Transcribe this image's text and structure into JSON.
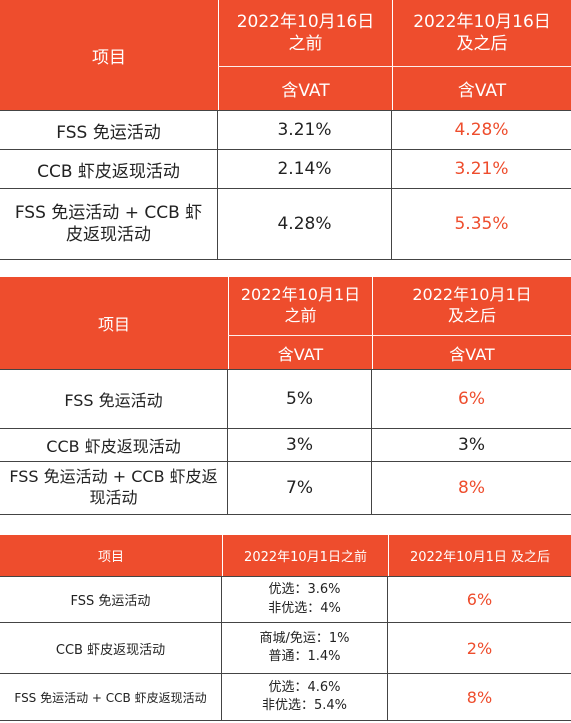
{
  "tables": [
    {
      "header": {
        "item": "项目",
        "col1_line1": "2022年10月16日",
        "col1_line2": "之前",
        "col2_line1": "2022年10月16日",
        "col2_line2": "及之后",
        "sub1": "含VAT",
        "sub2": "含VAT"
      },
      "rows": [
        {
          "item": "FSS 免运活动",
          "before": "3.21%",
          "after": "4.28%"
        },
        {
          "item": "CCB 虾皮返现活动",
          "before": "2.14%",
          "after": "3.21%"
        },
        {
          "item_line1": "FSS 免运活动 + CCB 虾",
          "item_line2": "皮返现活动",
          "before": "4.28%",
          "after": "5.35%"
        }
      ]
    },
    {
      "header": {
        "item": "项目",
        "col1_line1": "2022年10月1日",
        "col1_line2": "之前",
        "col2_line1": "2022年10月1日",
        "col2_line2": "及之后",
        "sub1": "含VAT",
        "sub2": "含VAT"
      },
      "rows": [
        {
          "item": "FSS 免运活动",
          "before": "5%",
          "after": "6%"
        },
        {
          "item": "CCB 虾皮返现活动",
          "before": "3%",
          "after": "3%"
        },
        {
          "item_line1": "FSS 免运活动 + CCB 虾皮返",
          "item_line2": "现活动",
          "before": "7%",
          "after": "8%"
        }
      ]
    },
    {
      "header": {
        "item": "项目",
        "col1": "2022年10月1日之前",
        "col2": "2022年10月1日 及之后"
      },
      "rows": [
        {
          "item": "FSS 免运活动",
          "before_line1": "优选：3.6%",
          "before_line2": "非优选：4%",
          "after": "6%"
        },
        {
          "item": "CCB 虾皮返现活动",
          "before_line1": "商城/免运：1%",
          "before_line2": "普通：1.4%",
          "after": "2%"
        },
        {
          "item": "FSS 免运活动 + CCB 虾皮返现活动",
          "before_line1": "优选：4.6%",
          "before_line2": "非优选：5.4%",
          "after": "8%"
        }
      ]
    }
  ],
  "colors": {
    "accent": "#ee4d2d",
    "header_text": "#ffffff",
    "grid": "#444444"
  }
}
